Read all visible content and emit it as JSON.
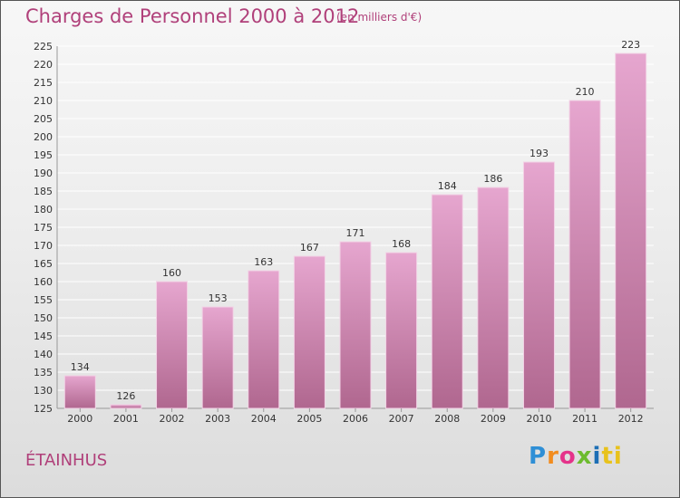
{
  "header": {
    "title": "Charges de Personnel 2000 à 2012",
    "subtitle": "(en milliers d'€)"
  },
  "footer": {
    "commune": "ÉTAINHUS",
    "logo_text": "Proxiti"
  },
  "colors": {
    "title": "#b0407a",
    "bar_top": "#e6a6cf",
    "bar_bottom": "#b0678f"
  },
  "chart_data": {
    "type": "bar",
    "title": "Charges de Personnel 2000 à 2012",
    "subtitle": "(en milliers d'€)",
    "categories": [
      "2000",
      "2001",
      "2002",
      "2003",
      "2004",
      "2005",
      "2006",
      "2007",
      "2008",
      "2009",
      "2010",
      "2011",
      "2012"
    ],
    "values": [
      134,
      126,
      160,
      153,
      163,
      167,
      171,
      168,
      184,
      186,
      193,
      210,
      223
    ],
    "ylim": [
      125,
      225
    ],
    "ytick_step": 5,
    "grid": true,
    "data_labels": true
  }
}
